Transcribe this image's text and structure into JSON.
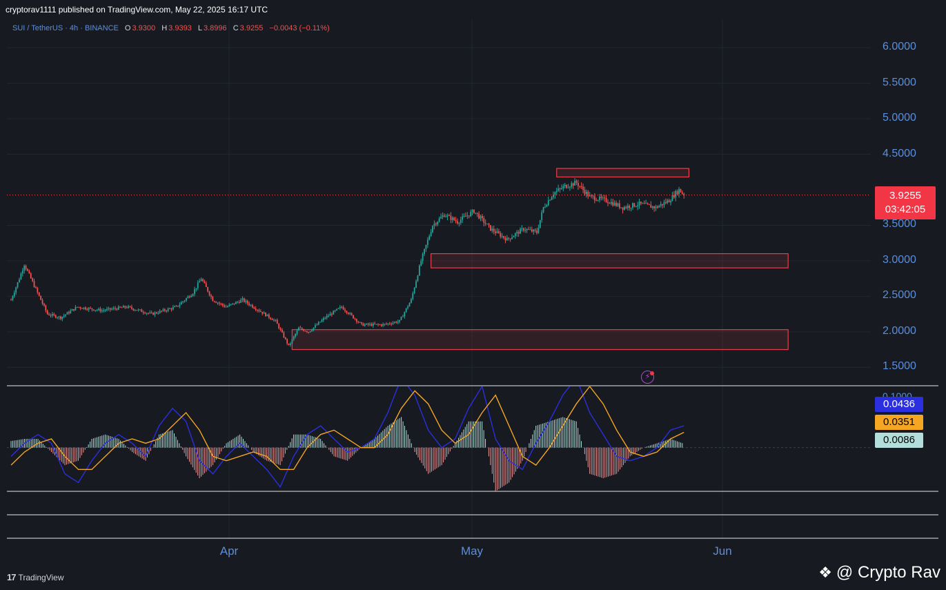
{
  "header": {
    "published_by": "cryptorav1111 published on TradingView.com, May 22, 2025 16:17 UTC"
  },
  "legend": {
    "symbol": "SUI / TetherUS · 4h · BINANCE",
    "open_label": "O",
    "open_value": "3.9300",
    "high_label": "H",
    "high_value": "3.9393",
    "low_label": "L",
    "low_value": "3.8996",
    "close_label": "C",
    "close_value": "3.9255",
    "change": "−0.0043 (−0.11%)"
  },
  "price_badge": {
    "price": "3.9255",
    "countdown": "03:42:05"
  },
  "oscillator_badges": [
    {
      "value": "0.0436",
      "bg": "#2b2fe0",
      "fg": "#ffffff"
    },
    {
      "value": "0.0351",
      "bg": "#f5a623",
      "fg": "#000000"
    },
    {
      "value": "0.0086",
      "bg": "#b2dfdb",
      "fg": "#000000"
    }
  ],
  "oscillator_top_label": "0.1000",
  "footer": {
    "tv_logo_text": "TradingView",
    "watermark": "@ Crypto Rav"
  },
  "colors": {
    "background": "#171a21",
    "up": "#26a69a",
    "down": "#ef5350",
    "axis_text": "#5b8fdc",
    "macd": "#2b2fe0",
    "signal": "#f5a623",
    "hist_up": "#b2dfdb",
    "hist_down": "#ef9a9a",
    "zone_border": "#e0434f"
  },
  "chart_data": [
    {
      "type": "candlestick",
      "title": "SUI / TetherUS · 4h · BINANCE",
      "y_ticks": [
        "6.0000",
        "5.5000",
        "5.0000",
        "4.5000",
        "3.5000",
        "3.0000",
        "2.5000",
        "2.0000",
        "1.5000"
      ],
      "ylim": [
        1.25,
        6.4
      ],
      "x_ticks": [
        "Apr",
        "May",
        "Jun"
      ],
      "last_price": 3.9255,
      "price_path": [
        {
          "t": 0,
          "p": 2.45
        },
        {
          "t": 5,
          "p": 2.75
        },
        {
          "t": 8,
          "p": 2.95
        },
        {
          "t": 14,
          "p": 2.65
        },
        {
          "t": 22,
          "p": 2.25
        },
        {
          "t": 30,
          "p": 2.2
        },
        {
          "t": 40,
          "p": 2.35
        },
        {
          "t": 55,
          "p": 2.3
        },
        {
          "t": 70,
          "p": 2.35
        },
        {
          "t": 85,
          "p": 2.25
        },
        {
          "t": 100,
          "p": 2.35
        },
        {
          "t": 110,
          "p": 2.55
        },
        {
          "t": 115,
          "p": 2.75
        },
        {
          "t": 122,
          "p": 2.45
        },
        {
          "t": 130,
          "p": 2.35
        },
        {
          "t": 140,
          "p": 2.45
        },
        {
          "t": 150,
          "p": 2.3
        },
        {
          "t": 160,
          "p": 2.15
        },
        {
          "t": 168,
          "p": 1.8
        },
        {
          "t": 174,
          "p": 2.05
        },
        {
          "t": 180,
          "p": 2.0
        },
        {
          "t": 190,
          "p": 2.2
        },
        {
          "t": 200,
          "p": 2.35
        },
        {
          "t": 212,
          "p": 2.1
        },
        {
          "t": 225,
          "p": 2.1
        },
        {
          "t": 235,
          "p": 2.15
        },
        {
          "t": 242,
          "p": 2.45
        },
        {
          "t": 248,
          "p": 3.0
        },
        {
          "t": 255,
          "p": 3.5
        },
        {
          "t": 262,
          "p": 3.65
        },
        {
          "t": 270,
          "p": 3.55
        },
        {
          "t": 280,
          "p": 3.7
        },
        {
          "t": 290,
          "p": 3.45
        },
        {
          "t": 300,
          "p": 3.3
        },
        {
          "t": 310,
          "p": 3.45
        },
        {
          "t": 318,
          "p": 3.4
        },
        {
          "t": 322,
          "p": 3.75
        },
        {
          "t": 328,
          "p": 3.95
        },
        {
          "t": 335,
          "p": 4.05
        },
        {
          "t": 342,
          "p": 4.1
        },
        {
          "t": 350,
          "p": 3.9
        },
        {
          "t": 360,
          "p": 3.85
        },
        {
          "t": 370,
          "p": 3.75
        },
        {
          "t": 380,
          "p": 3.8
        },
        {
          "t": 390,
          "p": 3.75
        },
        {
          "t": 398,
          "p": 3.85
        },
        {
          "t": 404,
          "p": 4.0
        },
        {
          "t": 407,
          "p": 3.93
        }
      ],
      "zones": [
        {
          "from_t": 330,
          "to_t": 410,
          "low": 4.18,
          "high": 4.3
        },
        {
          "from_t": 254,
          "to_t": 470,
          "low": 2.9,
          "high": 3.1
        },
        {
          "from_t": 170,
          "to_t": 470,
          "low": 1.75,
          "high": 2.03
        }
      ]
    },
    {
      "type": "line",
      "title": "MACD",
      "top_tick": "0.1000",
      "series": [
        {
          "values": [
            -0.02,
            0.01,
            0.03,
            0.01,
            -0.06,
            -0.08,
            -0.03,
            0.01,
            0.03,
            0.01,
            -0.02,
            0.05,
            0.09,
            0.06,
            -0.03,
            -0.06,
            -0.02,
            0.01,
            -0.02,
            -0.05,
            -0.09,
            -0.02,
            0.03,
            0.05,
            0.02,
            -0.01,
            0.0,
            0.02,
            0.08,
            0.16,
            0.12,
            0.04,
            0.0,
            0.02,
            0.09,
            0.14,
            0.02,
            -0.03,
            -0.05,
            0.01,
            0.06,
            0.12,
            0.16,
            0.08,
            0.03,
            -0.02,
            -0.03,
            -0.02,
            0.0,
            0.04,
            0.05
          ]
        },
        {
          "values": [
            -0.04,
            -0.01,
            0.01,
            0.02,
            -0.02,
            -0.05,
            -0.05,
            -0.02,
            0.01,
            0.02,
            0.01,
            0.02,
            0.05,
            0.08,
            0.04,
            -0.02,
            -0.03,
            -0.02,
            -0.01,
            -0.02,
            -0.05,
            -0.05,
            0.0,
            0.03,
            0.04,
            0.02,
            0.0,
            0.0,
            0.03,
            0.09,
            0.13,
            0.1,
            0.04,
            0.01,
            0.03,
            0.08,
            0.12,
            0.05,
            -0.02,
            -0.04,
            0.0,
            0.05,
            0.1,
            0.14,
            0.1,
            0.04,
            -0.01,
            -0.02,
            -0.01,
            0.02,
            0.035
          ]
        }
      ],
      "histogram": [
        0.015,
        0.02,
        0.02,
        -0.01,
        -0.04,
        -0.03,
        0.02,
        0.03,
        0.02,
        -0.01,
        -0.03,
        0.03,
        0.04,
        -0.02,
        -0.07,
        -0.04,
        0.01,
        0.03,
        -0.01,
        -0.03,
        -0.04,
        0.03,
        0.03,
        0.02,
        -0.02,
        -0.03,
        0.0,
        0.02,
        0.05,
        0.07,
        -0.01,
        -0.06,
        -0.04,
        0.01,
        0.06,
        0.06,
        -0.1,
        -0.08,
        -0.03,
        0.05,
        0.06,
        0.07,
        0.06,
        -0.06,
        -0.07,
        -0.06,
        -0.02,
        0.0,
        0.01,
        0.02,
        0.009
      ]
    }
  ]
}
